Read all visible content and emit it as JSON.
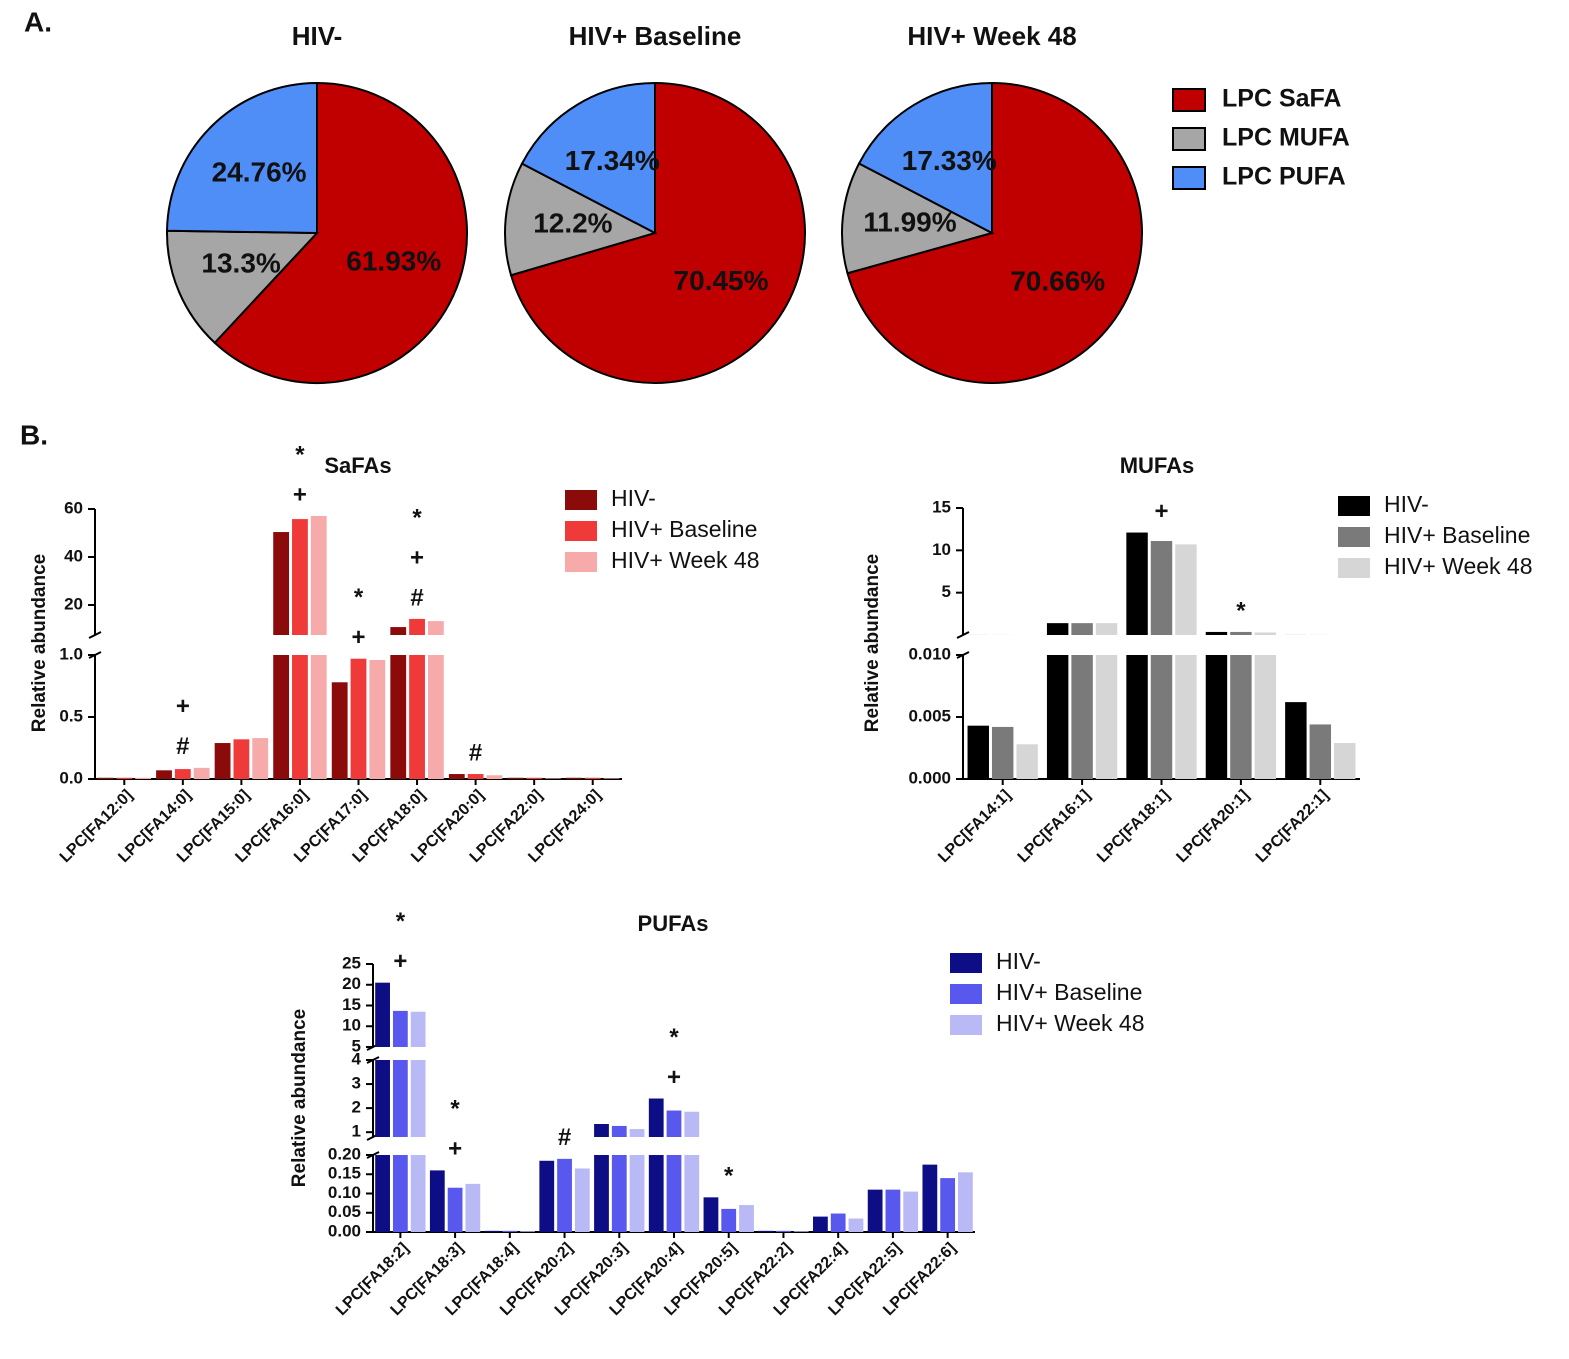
{
  "panel_labels": [
    "A.",
    "B."
  ],
  "chart_data": [
    {
      "type": "pie",
      "categories": [
        "LPC SaFA",
        "LPC MUFA",
        "LPC PUFA"
      ],
      "colors": [
        "#c00000",
        "#a6a6a6",
        "#4f8ef7"
      ],
      "series": [
        {
          "name": "HIV-",
          "values": [
            61.93,
            13.3,
            24.76
          ],
          "value_labels": [
            "61.93%",
            "13.3%",
            "24.76%"
          ]
        },
        {
          "name": "HIV+ Baseline",
          "values": [
            70.45,
            12.2,
            17.34
          ],
          "value_labels": [
            "70.45%",
            "12.2%",
            "17.34%"
          ]
        },
        {
          "name": "HIV+ Week 48",
          "values": [
            70.66,
            11.99,
            17.33
          ],
          "value_labels": [
            "70.66%",
            "11.99%",
            "17.33%"
          ]
        }
      ]
    },
    {
      "type": "bar",
      "title": "SaFAs",
      "y_label": "Relative abundance",
      "categories": [
        "LPC[FA12:0]",
        "LPC[FA14:0]",
        "LPC[FA15:0]",
        "LPC[FA16:0]",
        "LPC[FA17:0]",
        "LPC[FA18:0]",
        "LPC[FA20:0]",
        "LPC[FA22:0]",
        "LPC[FA24:0]"
      ],
      "series": [
        {
          "name": "HIV-",
          "color": "#8b0a0a",
          "values": [
            0.01,
            0.07,
            0.29,
            50.4,
            0.78,
            10.8,
            0.04,
            0.01,
            0.01
          ]
        },
        {
          "name": "HIV+ Baseline",
          "color": "#f03a3a",
          "values": [
            0.01,
            0.08,
            0.32,
            55.8,
            0.97,
            14.2,
            0.04,
            0.01,
            0.01
          ]
        },
        {
          "name": "HIV+ Week 48",
          "color": "#f7aaaa",
          "values": [
            0.01,
            0.09,
            0.33,
            57.1,
            0.96,
            13.3,
            0.03,
            0.005,
            0.005
          ]
        }
      ],
      "y_segments": [
        {
          "ylim": [
            0,
            1
          ],
          "yticks": [
            {
              "value": 0,
              "label": "0.0"
            },
            {
              "value": 0.5,
              "label": "0.5"
            },
            {
              "value": 1,
              "label": "1.0"
            }
          ]
        },
        {
          "ylim": [
            7.5,
            60
          ],
          "yticks": [
            20,
            40,
            60
          ]
        }
      ],
      "annotations": [
        null,
        [
          "+",
          "#"
        ],
        null,
        [
          "*",
          "+"
        ],
        [
          "*",
          "+"
        ],
        [
          "*",
          "+",
          "#"
        ],
        [
          "#"
        ],
        null,
        null
      ]
    },
    {
      "type": "bar",
      "title": "MUFAs",
      "y_label": "Relative abundance",
      "categories": [
        "LPC[FA14:1]",
        "LPC[FA16:1]",
        "LPC[FA18:1]",
        "LPC[FA20:1]",
        "LPC[FA22:1]"
      ],
      "series": [
        {
          "name": "HIV-",
          "color": "#000000",
          "values": [
            0.0043,
            1.4,
            12.1,
            0.36,
            0.0062
          ]
        },
        {
          "name": "HIV+ Baseline",
          "color": "#7a7a7a",
          "values": [
            0.0042,
            1.4,
            11.1,
            0.36,
            0.0044
          ]
        },
        {
          "name": "HIV+ Week 48",
          "color": "#d6d6d6",
          "values": [
            0.0028,
            1.4,
            10.7,
            0.3,
            0.0029
          ]
        }
      ],
      "y_segments": [
        {
          "ylim": [
            0,
            0.01
          ],
          "yticks": [
            {
              "value": 0,
              "label": "0.000"
            },
            {
              "value": 0.005,
              "label": "0.005"
            },
            {
              "value": 0.01,
              "label": "0.010"
            }
          ]
        },
        {
          "ylim": [
            0,
            15
          ],
          "yticks": [
            5,
            10,
            15
          ]
        }
      ],
      "annotations": [
        null,
        null,
        [
          "+"
        ],
        [
          "*"
        ],
        null
      ]
    },
    {
      "type": "bar",
      "title": "PUFAs",
      "y_label": "Relative abundance",
      "categories": [
        "LPC[FA18:2]",
        "LPC[FA18:3]",
        "LPC[FA18:4]",
        "LPC[FA20:2]",
        "LPC[FA20:3]",
        "LPC[FA20:4]",
        "LPC[FA20:5]",
        "LPC[FA22:2]",
        "LPC[FA22:4]",
        "LPC[FA22:5]",
        "LPC[FA22:6]"
      ],
      "series": [
        {
          "name": "HIV-",
          "color": "#0d0d85",
          "values": [
            20.5,
            0.16,
            0.003,
            0.185,
            1.34,
            2.4,
            0.09,
            0.003,
            0.04,
            0.11,
            0.175
          ]
        },
        {
          "name": "HIV+ Baseline",
          "color": "#5858ee",
          "values": [
            13.7,
            0.115,
            0.003,
            0.19,
            1.26,
            1.9,
            0.06,
            0.003,
            0.048,
            0.11,
            0.14
          ]
        },
        {
          "name": "HIV+ Week 48",
          "color": "#b9b9f5",
          "values": [
            13.5,
            0.125,
            0.002,
            0.165,
            1.13,
            1.85,
            0.07,
            0.002,
            0.035,
            0.105,
            0.155
          ]
        }
      ],
      "y_segments": [
        {
          "ylim": [
            0,
            0.2
          ],
          "yticks": [
            {
              "value": 0,
              "label": "0.00"
            },
            {
              "value": 0.05,
              "label": "0.05"
            },
            {
              "value": 0.1,
              "label": "0.10"
            },
            {
              "value": 0.15,
              "label": "0.15"
            },
            {
              "value": 0.2,
              "label": "0.20"
            }
          ]
        },
        {
          "ylim": [
            0.8,
            4
          ],
          "yticks": [
            1,
            2,
            3,
            4
          ]
        },
        {
          "ylim": [
            5,
            25
          ],
          "yticks": [
            5,
            10,
            15,
            20,
            25
          ]
        }
      ],
      "annotations": [
        [
          "*",
          "+"
        ],
        [
          "*",
          "+"
        ],
        null,
        [
          "#"
        ],
        null,
        [
          "*",
          "+"
        ],
        [
          "*"
        ],
        null,
        null,
        null,
        null
      ]
    }
  ]
}
